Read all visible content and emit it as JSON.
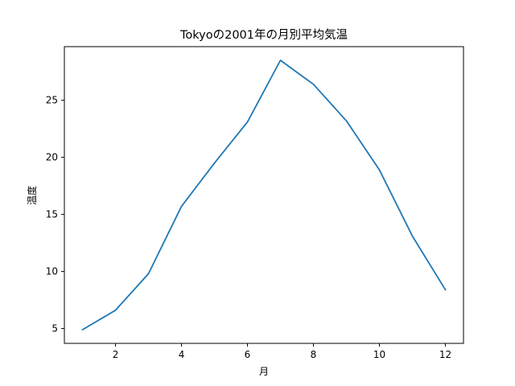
{
  "chart_data": {
    "type": "line",
    "title": "Tokyoの2001年の月別平均気温",
    "xlabel": "月",
    "ylabel": "温度",
    "x": [
      1,
      2,
      3,
      4,
      5,
      6,
      7,
      8,
      9,
      10,
      11,
      12
    ],
    "series": [
      {
        "values": [
          4.9,
          6.6,
          9.8,
          15.7,
          19.5,
          23.1,
          28.5,
          26.4,
          23.2,
          18.9,
          13.1,
          8.4
        ],
        "color": "#1f77b4"
      }
    ],
    "xlim": [
      0.45,
      12.55
    ],
    "ylim": [
      3.7,
      29.7
    ],
    "xticks": [
      2,
      4,
      6,
      8,
      10,
      12
    ],
    "yticks": [
      5,
      10,
      15,
      20,
      25
    ],
    "grid": false
  }
}
